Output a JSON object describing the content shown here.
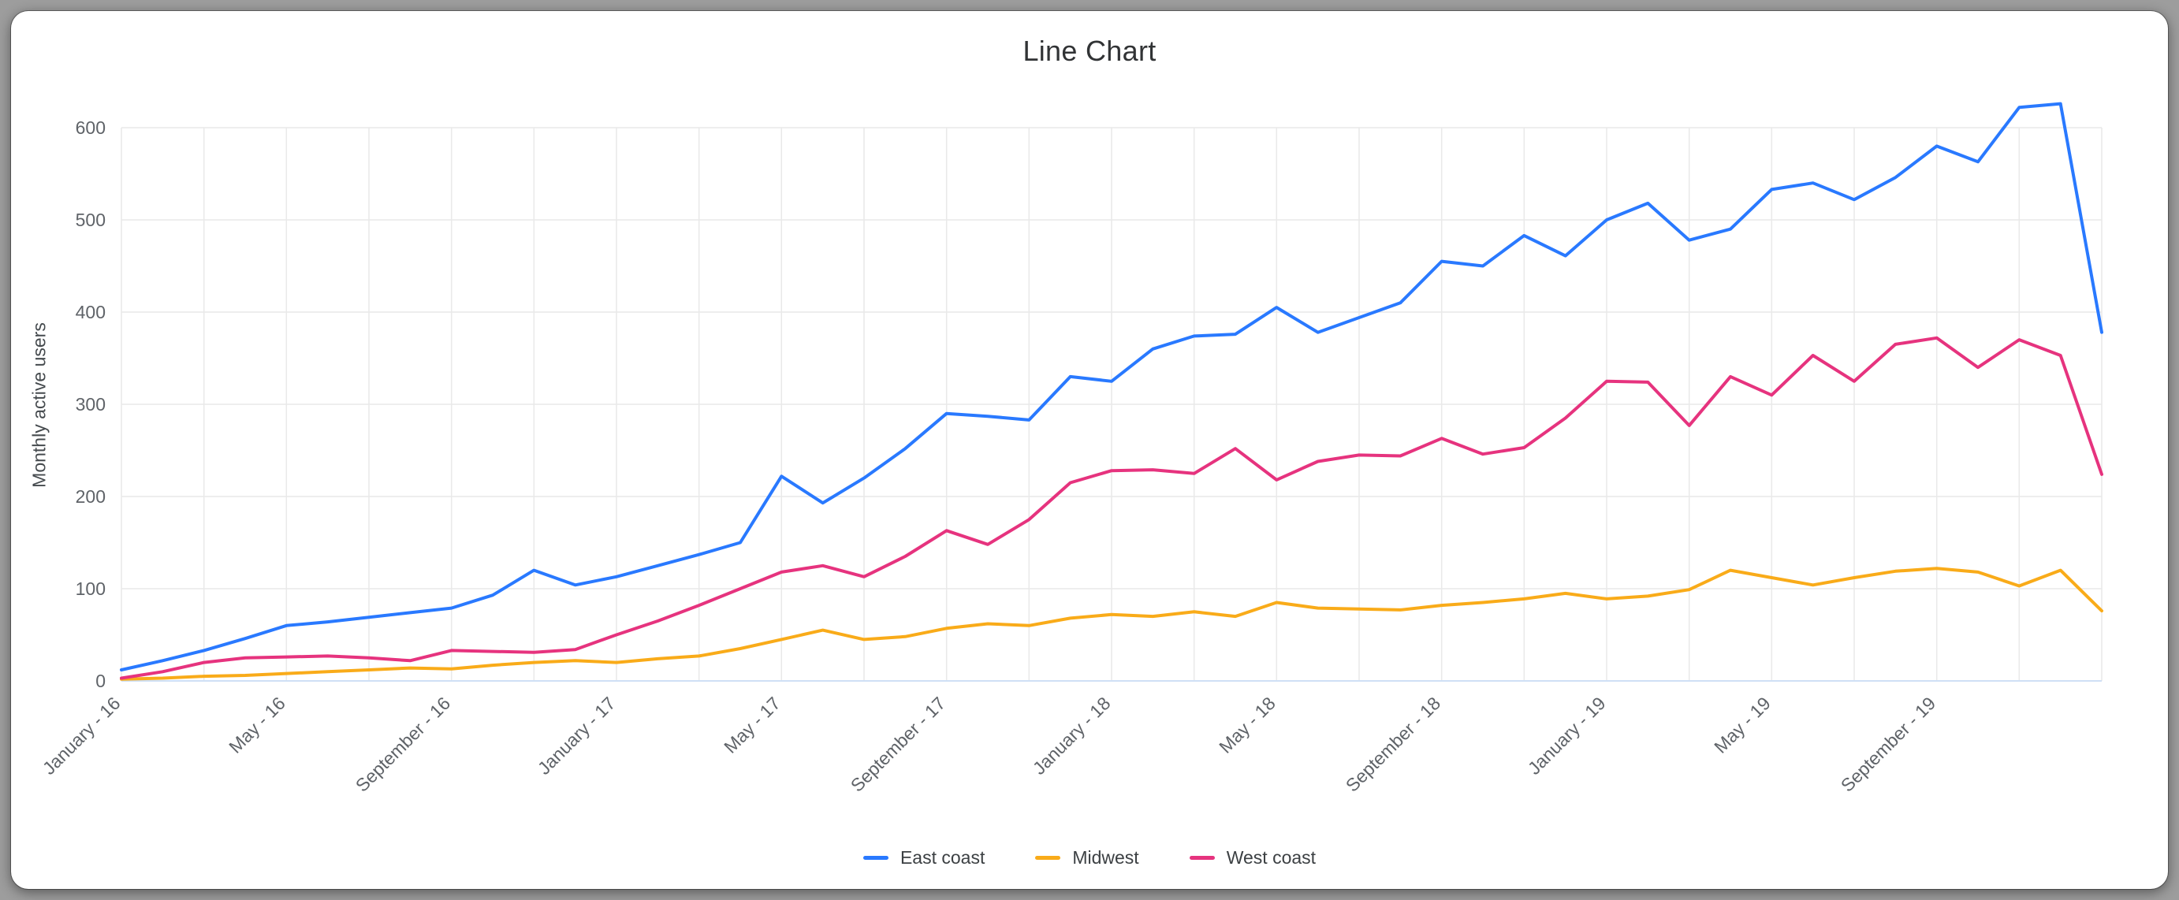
{
  "page": {
    "title": "Line Chart"
  },
  "colors": {
    "background": "#9d9d9d",
    "card": "#ffffff",
    "grid": "#e9e9e9",
    "baseline": "#cfe0f5",
    "axis_text": "#5f6368",
    "title_text": "#313335",
    "legend_text": "#3c4043",
    "east_coast": "#2979ff",
    "midwest": "#f9ab19",
    "west_coast": "#e6337e"
  },
  "chart_data": {
    "type": "line",
    "title": "Line Chart",
    "xlabel": "",
    "ylabel": "Monthly active users",
    "ylim": [
      0,
      600
    ],
    "yticks": [
      0,
      100,
      200,
      300,
      400,
      500,
      600
    ],
    "grid": true,
    "legend_position": "bottom",
    "x_unit": "month",
    "x": [
      "2016-01",
      "2016-02",
      "2016-03",
      "2016-04",
      "2016-05",
      "2016-06",
      "2016-07",
      "2016-08",
      "2016-09",
      "2016-10",
      "2016-11",
      "2016-12",
      "2017-01",
      "2017-02",
      "2017-03",
      "2017-04",
      "2017-05",
      "2017-06",
      "2017-07",
      "2017-08",
      "2017-09",
      "2017-10",
      "2017-11",
      "2017-12",
      "2018-01",
      "2018-02",
      "2018-03",
      "2018-04",
      "2018-05",
      "2018-06",
      "2018-07",
      "2018-08",
      "2018-09",
      "2018-10",
      "2018-11",
      "2018-12",
      "2019-01",
      "2019-02",
      "2019-03",
      "2019-04",
      "2019-05",
      "2019-06",
      "2019-07",
      "2019-08",
      "2019-09",
      "2019-10",
      "2019-11",
      "2019-12",
      "2020-01"
    ],
    "x_tick_labels": [
      {
        "index": 0,
        "label": "January - 16"
      },
      {
        "index": 4,
        "label": "May - 16"
      },
      {
        "index": 8,
        "label": "September - 16"
      },
      {
        "index": 12,
        "label": "January - 17"
      },
      {
        "index": 16,
        "label": "May - 17"
      },
      {
        "index": 20,
        "label": "September - 17"
      },
      {
        "index": 24,
        "label": "January - 18"
      },
      {
        "index": 28,
        "label": "May - 18"
      },
      {
        "index": 32,
        "label": "September - 18"
      },
      {
        "index": 36,
        "label": "January - 19"
      },
      {
        "index": 40,
        "label": "May - 19"
      },
      {
        "index": 44,
        "label": "September - 19"
      }
    ],
    "series": [
      {
        "name": "East coast",
        "color": "#2979ff",
        "values": [
          12,
          22,
          33,
          46,
          60,
          64,
          69,
          74,
          79,
          93,
          120,
          104,
          113,
          125,
          137,
          150,
          222,
          193,
          220,
          252,
          290,
          287,
          283,
          330,
          325,
          360,
          374,
          376,
          405,
          378,
          394,
          410,
          455,
          450,
          483,
          461,
          500,
          518,
          478,
          490,
          533,
          540,
          522,
          546,
          580,
          563,
          622,
          626,
          378
        ]
      },
      {
        "name": "Midwest",
        "color": "#f9ab19",
        "values": [
          2,
          3,
          5,
          6,
          8,
          10,
          12,
          14,
          13,
          17,
          20,
          22,
          20,
          24,
          27,
          35,
          45,
          55,
          45,
          48,
          57,
          62,
          60,
          68,
          72,
          70,
          75,
          70,
          85,
          79,
          78,
          77,
          82,
          85,
          89,
          95,
          89,
          92,
          99,
          120,
          112,
          104,
          112,
          119,
          122,
          118,
          103,
          120,
          76
        ]
      },
      {
        "name": "West coast",
        "color": "#e6337e",
        "values": [
          3,
          10,
          20,
          25,
          26,
          27,
          25,
          22,
          33,
          32,
          31,
          34,
          50,
          65,
          82,
          100,
          118,
          125,
          113,
          135,
          163,
          148,
          175,
          215,
          228,
          229,
          225,
          252,
          218,
          238,
          245,
          244,
          263,
          246,
          253,
          285,
          325,
          324,
          277,
          330,
          310,
          353,
          325,
          365,
          372,
          340,
          370,
          353,
          224
        ]
      }
    ]
  }
}
